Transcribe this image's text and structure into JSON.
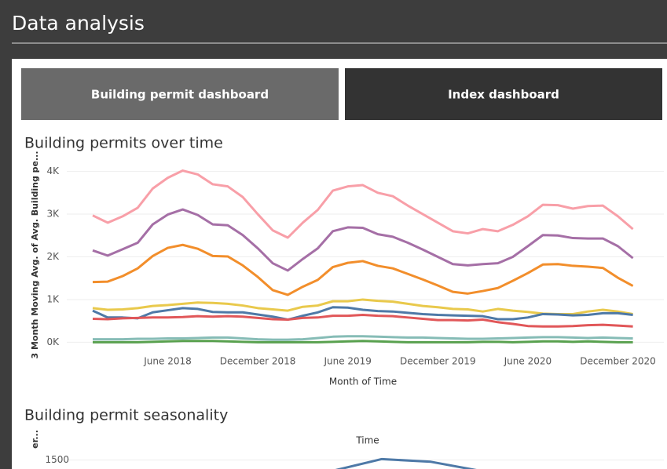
{
  "header": {
    "title": "Data analysis"
  },
  "tabs": [
    {
      "label": "Building permit dashboard",
      "active": true
    },
    {
      "label": "Index dashboard",
      "active": false
    }
  ],
  "chart_data": [
    {
      "type": "line",
      "title": "Building permits over time",
      "y_label": "3 Month Moving Avg. of Avg. Building pe...",
      "x_label": "Month of Time",
      "categories": [
        null,
        null,
        null,
        null,
        null,
        "June 2018",
        null,
        null,
        null,
        null,
        null,
        "December 2018",
        null,
        null,
        null,
        null,
        null,
        "June 2019",
        null,
        null,
        null,
        null,
        null,
        "December 2019",
        null,
        null,
        null,
        null,
        null,
        "June 2020",
        null,
        null,
        null,
        null,
        null,
        "December 2020",
        null
      ],
      "ylim": [
        -250,
        4250
      ],
      "yticks": [
        {
          "value": 0,
          "label": "0K"
        },
        {
          "value": 1000,
          "label": "1K"
        },
        {
          "value": 2000,
          "label": "2K"
        },
        {
          "value": 3000,
          "label": "3K"
        },
        {
          "value": 4000,
          "label": "4K"
        }
      ],
      "grid": true,
      "series": [
        {
          "color": "#f89fa8",
          "values": [
            2970,
            2800,
            2950,
            3150,
            3600,
            3850,
            4020,
            3930,
            3700,
            3650,
            3400,
            3000,
            2620,
            2450,
            2800,
            3100,
            3550,
            3650,
            3680,
            3500,
            3420,
            3200,
            3000,
            2800,
            2600,
            2550,
            2650,
            2600,
            2750,
            2950,
            3220,
            3210,
            3130,
            3190,
            3200,
            2950,
            2650
          ]
        },
        {
          "color": "#a56fa6",
          "values": [
            2150,
            2030,
            2180,
            2330,
            2760,
            2990,
            3110,
            2980,
            2760,
            2740,
            2510,
            2200,
            1850,
            1680,
            1950,
            2200,
            2600,
            2690,
            2680,
            2530,
            2470,
            2330,
            2170,
            2000,
            1830,
            1800,
            1830,
            1850,
            2000,
            2250,
            2510,
            2500,
            2440,
            2430,
            2430,
            2250,
            1970
          ]
        },
        {
          "color": "#f28e2b",
          "values": [
            1410,
            1420,
            1550,
            1730,
            2020,
            2210,
            2280,
            2190,
            2020,
            2010,
            1800,
            1530,
            1220,
            1110,
            1300,
            1460,
            1760,
            1860,
            1900,
            1790,
            1730,
            1600,
            1470,
            1330,
            1180,
            1140,
            1200,
            1270,
            1440,
            1620,
            1820,
            1830,
            1790,
            1770,
            1740,
            1510,
            1320
          ]
        },
        {
          "color": "#e9c94c",
          "values": [
            800,
            760,
            770,
            800,
            850,
            870,
            900,
            930,
            920,
            900,
            860,
            800,
            770,
            740,
            830,
            860,
            960,
            960,
            1000,
            970,
            950,
            900,
            850,
            820,
            780,
            770,
            720,
            780,
            740,
            710,
            670,
            660,
            660,
            720,
            760,
            720,
            660
          ]
        },
        {
          "color": "#4e79a7",
          "values": [
            740,
            580,
            580,
            560,
            700,
            750,
            800,
            780,
            710,
            700,
            700,
            650,
            600,
            530,
            620,
            700,
            820,
            810,
            760,
            730,
            720,
            690,
            660,
            640,
            630,
            620,
            610,
            540,
            540,
            580,
            660,
            650,
            630,
            640,
            680,
            680,
            640
          ]
        },
        {
          "color": "#e15759",
          "values": [
            550,
            540,
            560,
            570,
            580,
            580,
            590,
            610,
            600,
            610,
            600,
            570,
            540,
            530,
            570,
            580,
            620,
            620,
            640,
            620,
            610,
            580,
            550,
            520,
            520,
            510,
            530,
            470,
            430,
            380,
            370,
            370,
            380,
            400,
            410,
            390,
            370
          ]
        },
        {
          "color": "#86bcb6",
          "values": [
            70,
            70,
            70,
            80,
            80,
            90,
            90,
            100,
            110,
            110,
            90,
            70,
            60,
            60,
            70,
            100,
            130,
            140,
            140,
            130,
            120,
            110,
            110,
            100,
            90,
            80,
            80,
            90,
            100,
            110,
            120,
            120,
            110,
            100,
            110,
            100,
            90
          ]
        },
        {
          "color": "#59a14f",
          "values": [
            0,
            0,
            0,
            0,
            10,
            20,
            30,
            30,
            30,
            20,
            10,
            0,
            0,
            0,
            0,
            0,
            10,
            20,
            30,
            20,
            10,
            0,
            0,
            0,
            0,
            0,
            10,
            10,
            0,
            10,
            20,
            20,
            10,
            20,
            10,
            0,
            0
          ]
        }
      ]
    },
    {
      "type": "line",
      "title": "Building permit seasonality",
      "x_label": "Time",
      "y_label": "er...",
      "categories": [
        null,
        null,
        null,
        null,
        null,
        null,
        null,
        null,
        null,
        null,
        null,
        null
      ],
      "ylim": [
        1450,
        1550
      ],
      "yticks": [
        1500
      ],
      "grid": true,
      "series": [
        {
          "color": "#4e79a7",
          "values": [
            null,
            null,
            null,
            null,
            null,
            1440,
            1505,
            1490,
            1440,
            null,
            null,
            null
          ]
        }
      ]
    }
  ]
}
